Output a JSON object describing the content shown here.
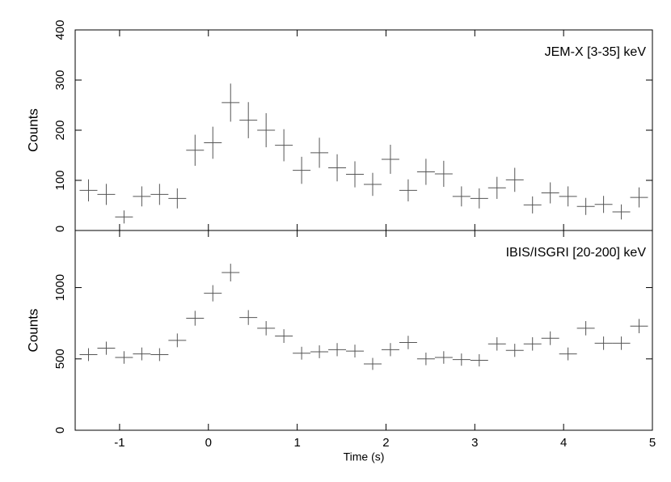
{
  "chart_data": [
    {
      "type": "errorbar",
      "annotation": "JEM-X [3-35] keV",
      "ylabel": "Counts",
      "color": "#555555",
      "x": [
        -1.35,
        -1.15,
        -0.95,
        -0.75,
        -0.55,
        -0.35,
        -0.15,
        0.05,
        0.25,
        0.45,
        0.65,
        0.85,
        1.05,
        1.25,
        1.45,
        1.65,
        1.85,
        2.05,
        2.25,
        2.45,
        2.65,
        2.85,
        3.05,
        3.25,
        3.45,
        3.65,
        3.85,
        4.05,
        4.25,
        4.45,
        4.65,
        4.85
      ],
      "xerr": 0.1,
      "values": [
        80,
        72,
        27,
        68,
        72,
        64,
        160,
        175,
        255,
        220,
        200,
        170,
        120,
        155,
        125,
        112,
        92,
        142,
        80,
        117,
        113,
        68,
        64,
        85,
        101,
        51,
        75,
        68,
        48,
        52,
        37,
        66
      ],
      "errors": [
        22,
        21,
        13,
        20,
        21,
        20,
        31,
        32,
        38,
        36,
        34,
        32,
        27,
        30,
        27,
        26,
        23,
        29,
        22,
        26,
        26,
        20,
        20,
        22,
        24,
        17,
        21,
        20,
        17,
        17,
        15,
        20
      ],
      "xlim": [
        -1.5,
        5
      ],
      "xticks": [
        -1,
        0,
        1,
        2,
        3,
        4,
        5
      ],
      "ylim": [
        0,
        400
      ],
      "yticks": [
        0,
        100,
        200,
        300,
        400
      ]
    },
    {
      "type": "errorbar",
      "annotation": "IBIS/ISGRI [20-200] keV",
      "ylabel": "Counts",
      "xlabel": "Time (s)",
      "color": "#555555",
      "x": [
        -1.35,
        -1.15,
        -0.95,
        -0.75,
        -0.55,
        -0.35,
        -0.15,
        0.05,
        0.25,
        0.45,
        0.65,
        0.85,
        1.05,
        1.25,
        1.45,
        1.65,
        1.85,
        2.05,
        2.25,
        2.45,
        2.65,
        2.85,
        3.05,
        3.25,
        3.45,
        3.65,
        3.85,
        4.05,
        4.25,
        4.45,
        4.65,
        4.85
      ],
      "xerr": 0.1,
      "values": [
        530,
        575,
        510,
        535,
        530,
        630,
        785,
        960,
        1105,
        790,
        715,
        660,
        540,
        550,
        565,
        555,
        465,
        565,
        615,
        500,
        510,
        495,
        490,
        605,
        560,
        605,
        645,
        535,
        715,
        610,
        610,
        730
      ],
      "errors": [
        45,
        46,
        44,
        45,
        45,
        48,
        52,
        57,
        62,
        52,
        50,
        48,
        45,
        45,
        46,
        45,
        42,
        46,
        47,
        44,
        44,
        43,
        43,
        47,
        46,
        47,
        48,
        45,
        50,
        47,
        47,
        50
      ],
      "xlim": [
        -1.5,
        5
      ],
      "xticks": [
        -1,
        0,
        1,
        2,
        3,
        4,
        5
      ],
      "ylim": [
        0,
        1400
      ],
      "yticks": [
        0,
        500,
        1000
      ]
    }
  ]
}
